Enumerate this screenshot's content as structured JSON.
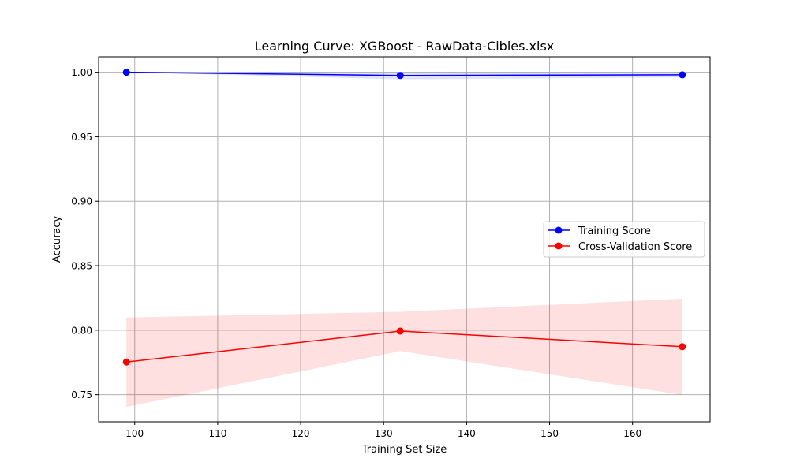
{
  "chart_data": {
    "type": "line",
    "title": "Learning Curve: XGBoost - RawData-Cibles.xlsx",
    "xlabel": "Training Set Size",
    "ylabel": "Accuracy",
    "xlim": [
      95.65,
      169.35
    ],
    "ylim": [
      0.729,
      1.012
    ],
    "x": [
      99,
      132,
      166
    ],
    "xticks": [
      100,
      110,
      120,
      130,
      140,
      150,
      160
    ],
    "xtick_labels": [
      "100",
      "110",
      "120",
      "130",
      "140",
      "150",
      "160"
    ],
    "yticks": [
      0.75,
      0.8,
      0.85,
      0.9,
      0.95,
      1.0
    ],
    "ytick_labels": [
      "0.75",
      "0.80",
      "0.85",
      "0.90",
      "0.95",
      "1.00"
    ],
    "grid": true,
    "legend_position": "center-right",
    "series": [
      {
        "name": "Training Score",
        "color": "#0000ff",
        "band_color": "#0000ff",
        "values": [
          1.0,
          0.9975,
          0.998
        ],
        "band_lower": [
          1.0,
          0.9945,
          0.996
        ],
        "band_upper": [
          1.0,
          1.0,
          1.0
        ]
      },
      {
        "name": "Cross-Validation Score",
        "color": "#ff0000",
        "band_color": "#ff0000",
        "values": [
          0.7753,
          0.7993,
          0.7872
        ],
        "band_lower": [
          0.7405,
          0.7838,
          0.7498
        ],
        "band_upper": [
          0.8098,
          0.8143,
          0.8244
        ]
      }
    ]
  }
}
